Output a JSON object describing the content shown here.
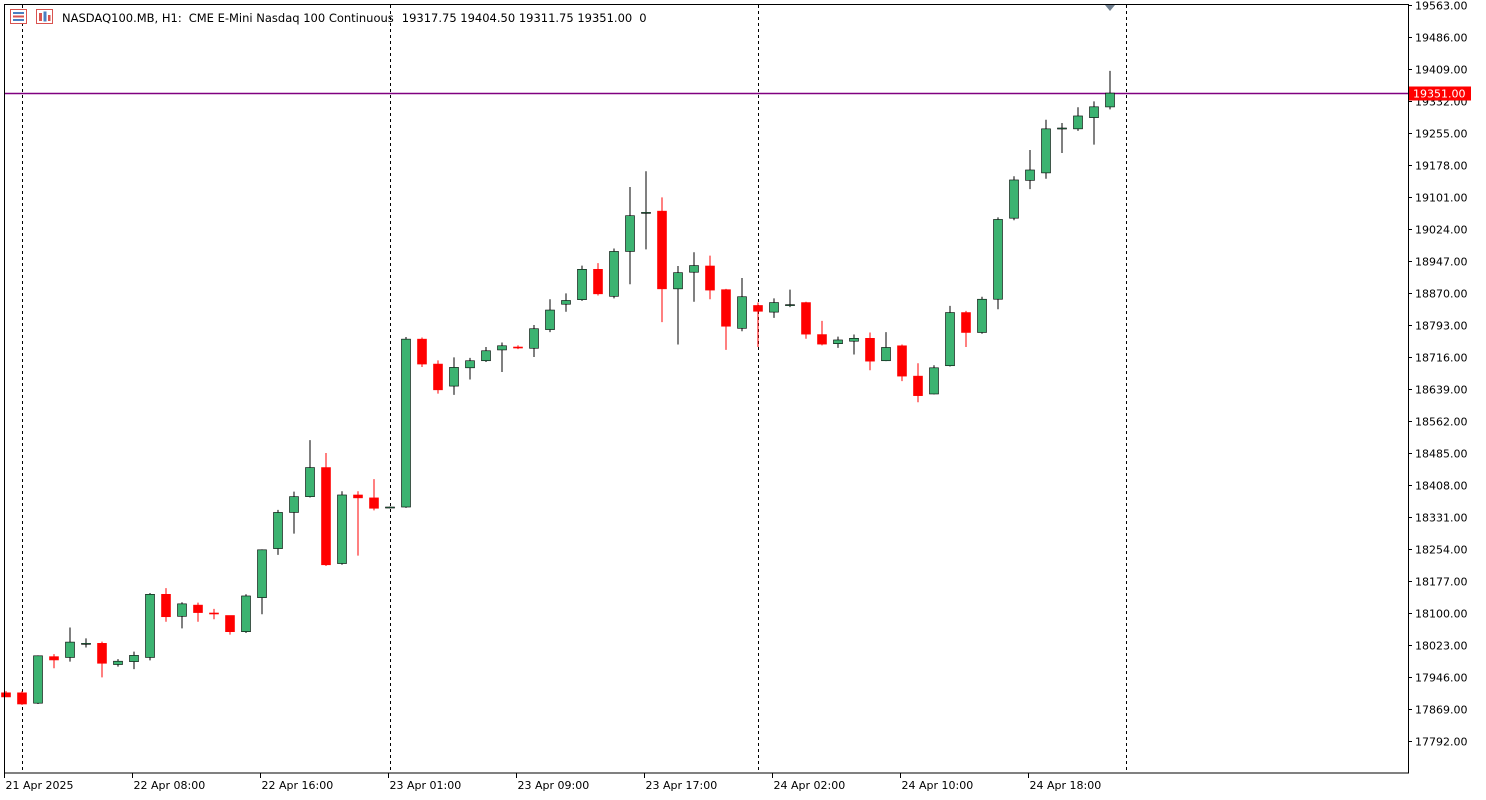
{
  "header": {
    "symbol_timeframe": "NASDAQ100.MB, H1:",
    "description": "CME E-Mini Nasdaq 100 Continuous",
    "ohlc": "19317.75 19404.50 19311.75 19351.00",
    "volume": "0"
  },
  "colors": {
    "bull": "#3cb371",
    "bear": "#ff0000",
    "bid_line": "#800080",
    "price_tag": "#ff0000",
    "axis": "#000000",
    "period_separator": "#000000"
  },
  "chart_data": {
    "type": "candlestick",
    "symbol": "NASDAQ100.MB",
    "timeframe": "H1",
    "y_ticks": [
      "19563.00",
      "19486.00",
      "19409.00",
      "19332.00",
      "19255.00",
      "19178.00",
      "19101.00",
      "19024.00",
      "18947.00",
      "18870.00",
      "18793.00",
      "18716.00",
      "18639.00",
      "18562.00",
      "18485.00",
      "18408.00",
      "18331.00",
      "18254.00",
      "18177.00",
      "18100.00",
      "18023.00",
      "17946.00",
      "17869.00",
      "17792.00"
    ],
    "ylim": [
      17710,
      19565
    ],
    "x_labels": [
      {
        "bar": 0,
        "text": "21 Apr 2025"
      },
      {
        "bar": 8,
        "text": "22 Apr 08:00"
      },
      {
        "bar": 16,
        "text": "22 Apr 16:00"
      },
      {
        "bar": 24,
        "text": "23 Apr 01:00"
      },
      {
        "bar": 32,
        "text": "23 Apr 09:00"
      },
      {
        "bar": 40,
        "text": "23 Apr 17:00"
      },
      {
        "bar": 48,
        "text": "24 Apr 02:00"
      },
      {
        "bar": 56,
        "text": "24 Apr 10:00"
      },
      {
        "bar": 64,
        "text": "24 Apr 18:00"
      }
    ],
    "period_separators_at_bar": [
      1,
      24,
      47,
      70
    ],
    "current_price": "19351.00",
    "candles": [
      {
        "o": 17908,
        "h": 17912,
        "l": 17898,
        "c": 17898
      },
      {
        "o": 17908,
        "h": 17912,
        "l": 17879,
        "c": 17881
      },
      {
        "o": 17883,
        "h": 17998,
        "l": 17881,
        "c": 17997
      },
      {
        "o": 17995,
        "h": 18001,
        "l": 17967,
        "c": 17987
      },
      {
        "o": 17993,
        "h": 18065,
        "l": 17983,
        "c": 18030
      },
      {
        "o": 18027,
        "h": 18039,
        "l": 18017,
        "c": 18027
      },
      {
        "o": 18027,
        "h": 18031,
        "l": 17945,
        "c": 17979
      },
      {
        "o": 17976,
        "h": 17989,
        "l": 17971,
        "c": 17984
      },
      {
        "o": 17983,
        "h": 18007,
        "l": 17965,
        "c": 17998
      },
      {
        "o": 17993,
        "h": 18148,
        "l": 17986,
        "c": 18145
      },
      {
        "o": 18145,
        "h": 18160,
        "l": 18079,
        "c": 18091
      },
      {
        "o": 18092,
        "h": 18126,
        "l": 18063,
        "c": 18122
      },
      {
        "o": 18119,
        "h": 18125,
        "l": 18079,
        "c": 18101
      },
      {
        "o": 18100,
        "h": 18110,
        "l": 18085,
        "c": 18099
      },
      {
        "o": 18094,
        "h": 18094,
        "l": 18048,
        "c": 18055
      },
      {
        "o": 18055,
        "h": 18145,
        "l": 18052,
        "c": 18141
      },
      {
        "o": 18137,
        "h": 18253,
        "l": 18097,
        "c": 18252
      },
      {
        "o": 18255,
        "h": 18348,
        "l": 18240,
        "c": 18342
      },
      {
        "o": 18342,
        "h": 18392,
        "l": 18291,
        "c": 18380
      },
      {
        "o": 18380,
        "h": 18516,
        "l": 18378,
        "c": 18450
      },
      {
        "o": 18450,
        "h": 18485,
        "l": 18213,
        "c": 18216
      },
      {
        "o": 18219,
        "h": 18393,
        "l": 18216,
        "c": 18384
      },
      {
        "o": 18384,
        "h": 18393,
        "l": 18238,
        "c": 18377
      },
      {
        "o": 18377,
        "h": 18422,
        "l": 18347,
        "c": 18352
      },
      {
        "o": 18354,
        "h": 18356,
        "l": 18352,
        "c": 18355
      },
      {
        "o": 18355,
        "h": 18764,
        "l": 18353,
        "c": 18759
      },
      {
        "o": 18759,
        "h": 18763,
        "l": 18692,
        "c": 18699
      },
      {
        "o": 18699,
        "h": 18708,
        "l": 18628,
        "c": 18637
      },
      {
        "o": 18646,
        "h": 18715,
        "l": 18625,
        "c": 18691
      },
      {
        "o": 18690,
        "h": 18714,
        "l": 18662,
        "c": 18707
      },
      {
        "o": 18707,
        "h": 18740,
        "l": 18704,
        "c": 18731
      },
      {
        "o": 18733,
        "h": 18751,
        "l": 18680,
        "c": 18743
      },
      {
        "o": 18740,
        "h": 18744,
        "l": 18735,
        "c": 18738
      },
      {
        "o": 18737,
        "h": 18793,
        "l": 18716,
        "c": 18784
      },
      {
        "o": 18782,
        "h": 18855,
        "l": 18776,
        "c": 18829
      },
      {
        "o": 18843,
        "h": 18869,
        "l": 18825,
        "c": 18852
      },
      {
        "o": 18854,
        "h": 18936,
        "l": 18851,
        "c": 18927
      },
      {
        "o": 18927,
        "h": 18942,
        "l": 18864,
        "c": 18868
      },
      {
        "o": 18862,
        "h": 18977,
        "l": 18857,
        "c": 18970
      },
      {
        "o": 18970,
        "h": 19125,
        "l": 18891,
        "c": 19056
      },
      {
        "o": 19064,
        "h": 19163,
        "l": 18975,
        "c": 19064
      },
      {
        "o": 19067,
        "h": 19100,
        "l": 18800,
        "c": 18880
      },
      {
        "o": 18880,
        "h": 18935,
        "l": 18746,
        "c": 18919
      },
      {
        "o": 18920,
        "h": 18968,
        "l": 18849,
        "c": 18936
      },
      {
        "o": 18935,
        "h": 18960,
        "l": 18855,
        "c": 18877
      },
      {
        "o": 18878,
        "h": 18880,
        "l": 18733,
        "c": 18790
      },
      {
        "o": 18785,
        "h": 18906,
        "l": 18778,
        "c": 18861
      },
      {
        "o": 18840,
        "h": 18847,
        "l": 18740,
        "c": 18826
      },
      {
        "o": 18824,
        "h": 18857,
        "l": 18810,
        "c": 18847
      },
      {
        "o": 18842,
        "h": 18878,
        "l": 18836,
        "c": 18842
      },
      {
        "o": 18847,
        "h": 18849,
        "l": 18760,
        "c": 18771
      },
      {
        "o": 18770,
        "h": 18803,
        "l": 18744,
        "c": 18747
      },
      {
        "o": 18748,
        "h": 18765,
        "l": 18738,
        "c": 18757
      },
      {
        "o": 18754,
        "h": 18770,
        "l": 18722,
        "c": 18761
      },
      {
        "o": 18761,
        "h": 18775,
        "l": 18684,
        "c": 18706
      },
      {
        "o": 18707,
        "h": 18776,
        "l": 18706,
        "c": 18739
      },
      {
        "o": 18743,
        "h": 18746,
        "l": 18658,
        "c": 18670
      },
      {
        "o": 18670,
        "h": 18701,
        "l": 18607,
        "c": 18623
      },
      {
        "o": 18627,
        "h": 18696,
        "l": 18626,
        "c": 18690
      },
      {
        "o": 18695,
        "h": 18839,
        "l": 18693,
        "c": 18823
      },
      {
        "o": 18823,
        "h": 18827,
        "l": 18740,
        "c": 18775
      },
      {
        "o": 18775,
        "h": 18861,
        "l": 18772,
        "c": 18855
      },
      {
        "o": 18855,
        "h": 19052,
        "l": 18831,
        "c": 19047
      },
      {
        "o": 19050,
        "h": 19151,
        "l": 19045,
        "c": 19142
      },
      {
        "o": 19141,
        "h": 19214,
        "l": 19120,
        "c": 19166
      },
      {
        "o": 19159,
        "h": 19287,
        "l": 19145,
        "c": 19265
      },
      {
        "o": 19265,
        "h": 19279,
        "l": 19207,
        "c": 19267
      },
      {
        "o": 19265,
        "h": 19317,
        "l": 19260,
        "c": 19296
      },
      {
        "o": 19292,
        "h": 19331,
        "l": 19227,
        "c": 19318
      },
      {
        "o": 19317.75,
        "h": 19404.5,
        "l": 19311.75,
        "c": 19351
      }
    ]
  }
}
